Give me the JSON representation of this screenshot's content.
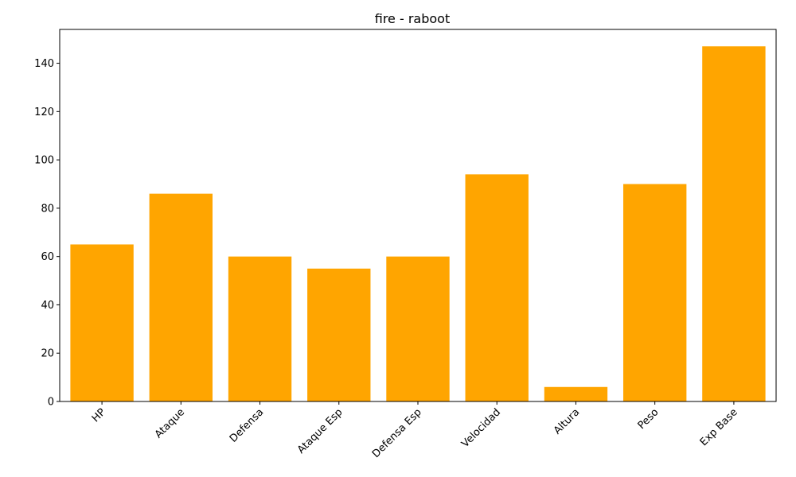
{
  "chart_data": {
    "type": "bar",
    "title": "fire - raboot",
    "xlabel": "",
    "ylabel": "",
    "categories": [
      "HP",
      "Ataque",
      "Defensa",
      "Ataque Esp",
      "Defensa Esp",
      "Velocidad",
      "Altura",
      "Peso",
      "Exp Base"
    ],
    "values": [
      65,
      86,
      60,
      55,
      60,
      94,
      6,
      90,
      147
    ],
    "ylim": [
      0,
      154
    ],
    "yticks": [
      0,
      20,
      40,
      60,
      80,
      100,
      120,
      140
    ],
    "xtick_rotation_deg": 45,
    "bar_color": "#ffa500",
    "grid": false,
    "legend": "none"
  }
}
